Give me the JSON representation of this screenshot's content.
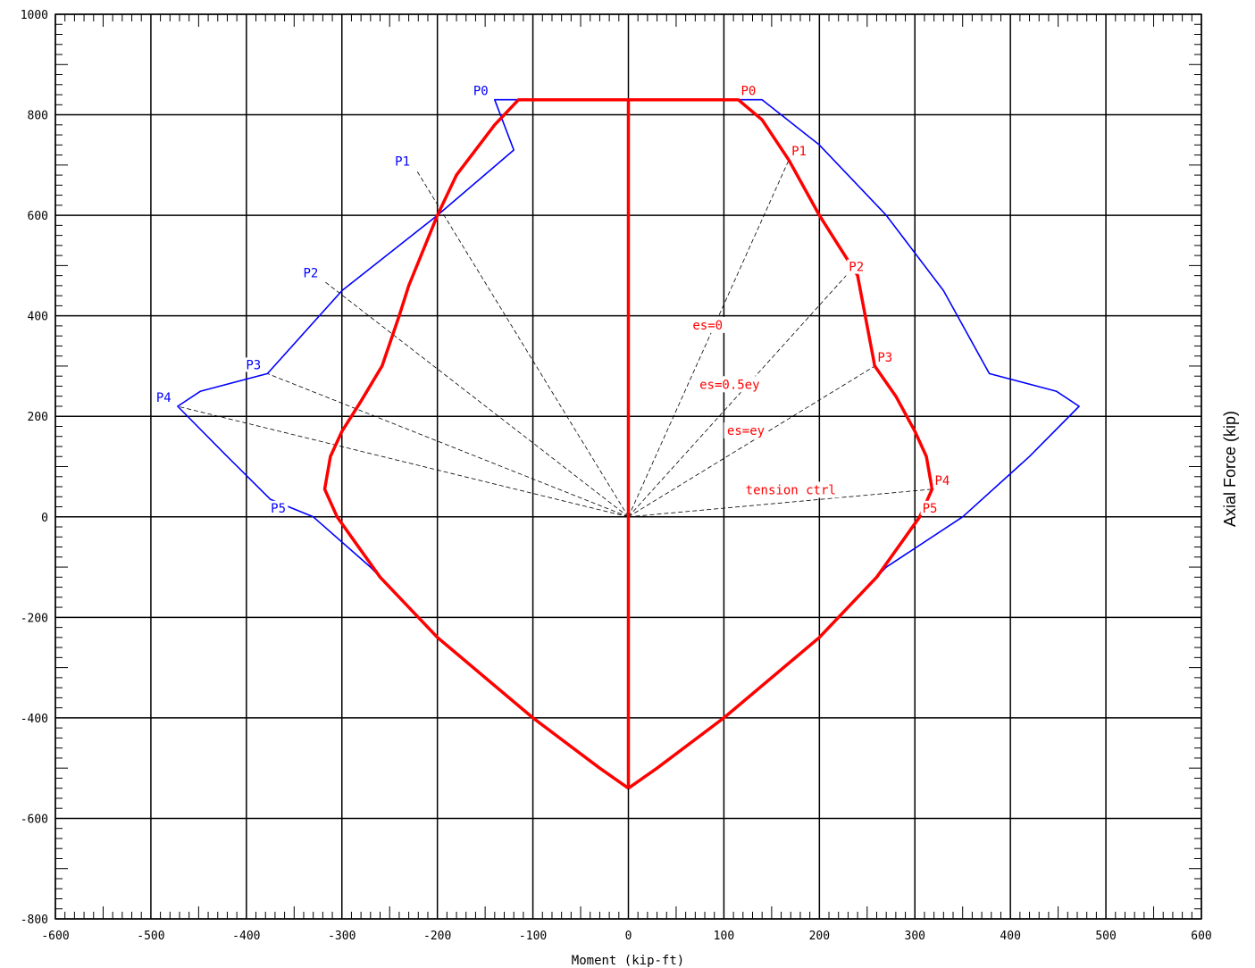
{
  "chart_data": {
    "type": "line",
    "title": "",
    "xlabel": "Moment (kip-ft)",
    "ylabel": "Axial Force (kip)",
    "xlim": [
      -600,
      600
    ],
    "ylim": [
      -800,
      1000
    ],
    "x_ticks": [
      -600,
      -500,
      -400,
      -300,
      -200,
      -100,
      0,
      100,
      200,
      300,
      400,
      500,
      600
    ],
    "y_ticks": [
      -800,
      -600,
      -400,
      -200,
      0,
      200,
      400,
      600,
      800,
      1000
    ],
    "grid": true,
    "colors": {
      "nominal": "#0000ff",
      "design": "#ff0000",
      "strain_lines": "#000000"
    },
    "series": [
      {
        "key": "nominal",
        "points": [
          [
            0,
            -540
          ],
          [
            -30,
            -500
          ],
          [
            -100,
            -400
          ],
          [
            -200,
            -240
          ],
          [
            -270,
            -100
          ],
          [
            -330,
            0
          ],
          [
            -375,
            35
          ],
          [
            -420,
            120
          ],
          [
            -472,
            220
          ],
          [
            -448,
            250
          ],
          [
            -378,
            285
          ],
          [
            -300,
            450
          ],
          [
            -200,
            600
          ],
          [
            -120,
            730
          ],
          [
            -140,
            830
          ],
          [
            140,
            830
          ],
          [
            200,
            740
          ],
          [
            270,
            600
          ],
          [
            330,
            450
          ],
          [
            378,
            285
          ],
          [
            448,
            250
          ],
          [
            472,
            220
          ],
          [
            420,
            120
          ],
          [
            350,
            0
          ],
          [
            270,
            -100
          ],
          [
            200,
            -240
          ],
          [
            100,
            -400
          ],
          [
            30,
            -500
          ],
          [
            0,
            -540
          ]
        ]
      },
      {
        "key": "design",
        "points": [
          [
            0,
            -540
          ],
          [
            -30,
            -500
          ],
          [
            -100,
            -400
          ],
          [
            -200,
            -240
          ],
          [
            -260,
            -120
          ],
          [
            -290,
            -40
          ],
          [
            -305,
            0
          ],
          [
            -318,
            55
          ],
          [
            -312,
            120
          ],
          [
            -300,
            170
          ],
          [
            -280,
            230
          ],
          [
            -258,
            300
          ],
          [
            -240,
            400
          ],
          [
            -230,
            460
          ],
          [
            -200,
            600
          ],
          [
            -180,
            680
          ],
          [
            -140,
            780
          ],
          [
            -115,
            830
          ],
          [
            115,
            830
          ],
          [
            140,
            790
          ],
          [
            168,
            710
          ],
          [
            200,
            600
          ],
          [
            240,
            480
          ],
          [
            258,
            300
          ],
          [
            280,
            240
          ],
          [
            300,
            170
          ],
          [
            312,
            120
          ],
          [
            318,
            55
          ],
          [
            305,
            0
          ],
          [
            290,
            -40
          ],
          [
            260,
            -120
          ],
          [
            200,
            -240
          ],
          [
            100,
            -400
          ],
          [
            30,
            -500
          ],
          [
            0,
            -540
          ]
        ]
      },
      {
        "key": "axis_zero",
        "points": [
          [
            0,
            830
          ],
          [
            0,
            -540
          ]
        ]
      }
    ],
    "nominal_labels": [
      {
        "text": "P0",
        "x": -140,
        "y": 830
      },
      {
        "text": "P1",
        "x": -222,
        "y": 690
      },
      {
        "text": "P2",
        "x": -318,
        "y": 468
      },
      {
        "text": "P3",
        "x": -378,
        "y": 285
      },
      {
        "text": "P4",
        "x": -472,
        "y": 220
      },
      {
        "text": "P5",
        "x": -352,
        "y": 0
      }
    ],
    "design_labels": [
      {
        "text": "P0",
        "x": 115,
        "y": 830
      },
      {
        "text": "P1",
        "x": 168,
        "y": 710
      },
      {
        "text": "P2",
        "x": 228,
        "y": 480
      },
      {
        "text": "P3",
        "x": 258,
        "y": 300
      },
      {
        "text": "P4",
        "x": 318,
        "y": 55
      },
      {
        "text": "P5",
        "x": 305,
        "y": 0
      }
    ],
    "strain_lines": [
      {
        "to": [
          -222,
          690
        ]
      },
      {
        "to": [
          -318,
          468
        ]
      },
      {
        "to": [
          -378,
          285
        ]
      },
      {
        "to": [
          -472,
          220
        ]
      },
      {
        "to": [
          168,
          710
        ]
      },
      {
        "to": [
          228,
          480
        ]
      },
      {
        "to": [
          258,
          300
        ]
      },
      {
        "to": [
          318,
          55
        ]
      }
    ],
    "annotations": [
      {
        "text": "es=0",
        "x": 83,
        "y": 373
      },
      {
        "text": "es=0.5ey",
        "x": 106,
        "y": 255
      },
      {
        "text": "es=ey",
        "x": 123,
        "y": 163
      },
      {
        "text": "tension ctrl",
        "x": 170,
        "y": 45
      }
    ]
  }
}
